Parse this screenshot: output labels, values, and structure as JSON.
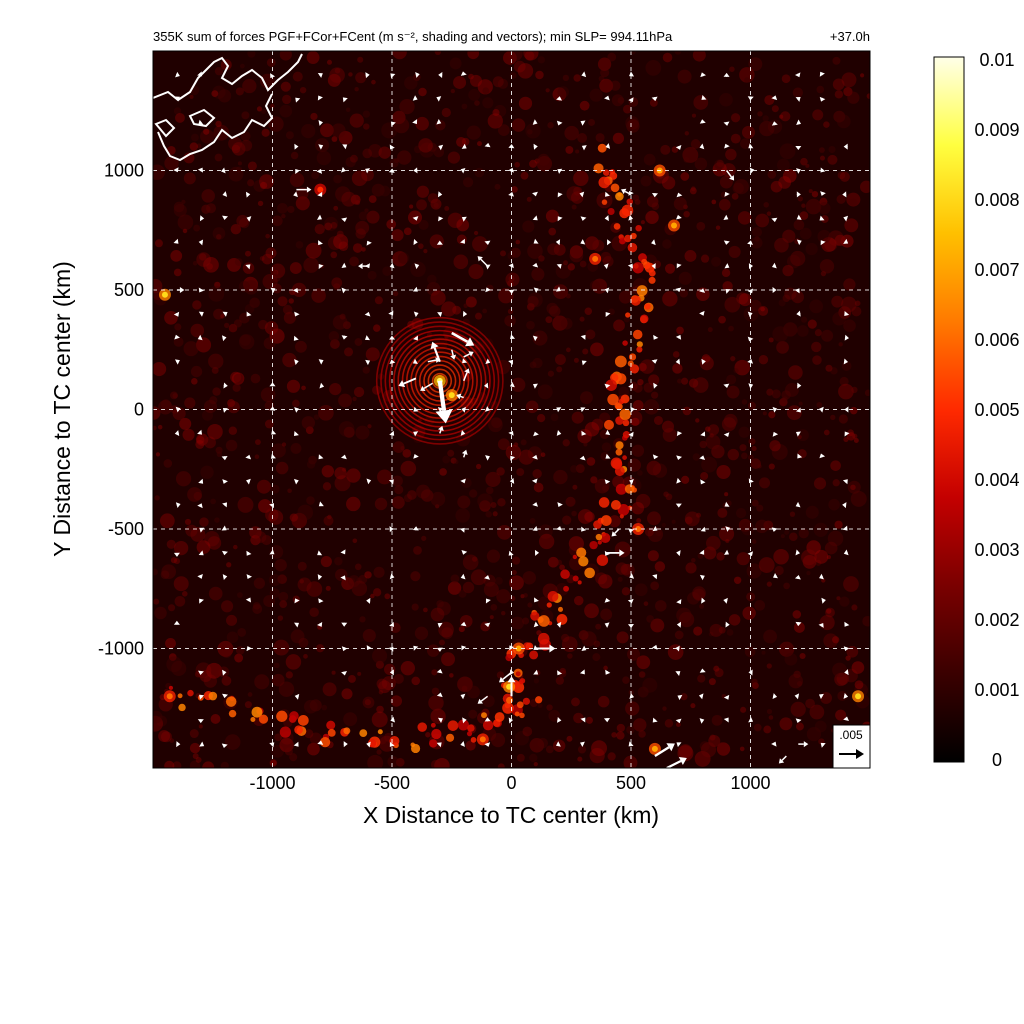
{
  "chart_data": {
    "type": "heatmap",
    "title": "355K sum of forces PGF+FCor+FCent (m s⁻², shading and vectors); min SLP= 994.11hPa",
    "time_label": "+37.0h",
    "xlabel": "X Distance to TC center (km)",
    "ylabel": "Y Distance to TC center (km)",
    "xlim": [
      -1500,
      1500
    ],
    "ylim": [
      -1500,
      1500
    ],
    "xticks": [
      -1000,
      -500,
      0,
      500,
      1000
    ],
    "yticks": [
      -1000,
      -500,
      0,
      500,
      1000
    ],
    "grid": true,
    "colorbar": {
      "range": [
        0,
        0.01
      ],
      "ticks": [
        "0",
        "0.001",
        "0.002",
        "0.003",
        "0.004",
        "0.005",
        "0.006",
        "0.007",
        "0.008",
        "0.009",
        "0.01"
      ],
      "colors": [
        "#000000",
        "#3a0000",
        "#7a0000",
        "#c40000",
        "#ff2a00",
        "#ff7a00",
        "#ffc000",
        "#ffff40",
        "#ffffe8"
      ]
    },
    "reference_vector": {
      "label": ".005",
      "magnitude": 0.005
    },
    "features": {
      "vortex_center": [
        -300,
        120
      ],
      "bands": [
        {
          "name": "eastern band",
          "points": [
            [
              350,
              1050
            ],
            [
              480,
              800
            ],
            [
              560,
              550
            ],
            [
              500,
              250
            ],
            [
              420,
              0
            ],
            [
              480,
              -300
            ],
            [
              380,
              -550
            ],
            [
              200,
              -800
            ],
            [
              30,
              -1050
            ],
            [
              0,
              -1300
            ]
          ]
        },
        {
          "name": "southern rainband",
          "points": [
            [
              -1400,
              -1200
            ],
            [
              -1000,
              -1300
            ],
            [
              -600,
              -1400
            ],
            [
              -200,
              -1350
            ],
            [
              100,
              -1200
            ]
          ]
        }
      ],
      "hotspots": [
        {
          "x": -300,
          "y": 120,
          "value": 0.009
        },
        {
          "x": -250,
          "y": 60,
          "value": 0.008
        },
        {
          "x": -1450,
          "y": 480,
          "value": 0.008
        },
        {
          "x": 620,
          "y": 1000,
          "value": 0.007
        },
        {
          "x": 680,
          "y": 770,
          "value": 0.007
        },
        {
          "x": 350,
          "y": 630,
          "value": 0.006
        },
        {
          "x": 530,
          "y": -500,
          "value": 0.006
        },
        {
          "x": 30,
          "y": -1000,
          "value": 0.007
        },
        {
          "x": -10,
          "y": -1160,
          "value": 0.008
        },
        {
          "x": -1430,
          "y": -1200,
          "value": 0.006
        },
        {
          "x": 1450,
          "y": -1200,
          "value": 0.008
        },
        {
          "x": 600,
          "y": -1420,
          "value": 0.007
        },
        {
          "x": -120,
          "y": -1380,
          "value": 0.006
        },
        {
          "x": -800,
          "y": 920,
          "value": 0.005
        }
      ]
    },
    "vectors": [
      {
        "x": -250,
        "y": 320,
        "u": 0.0045,
        "v": -0.0025
      },
      {
        "x": -300,
        "y": 200,
        "u": -0.0015,
        "v": 0.004
      },
      {
        "x": -250,
        "y": 250,
        "u": 0.0005,
        "v": -0.002
      },
      {
        "x": -300,
        "y": 120,
        "u": 0.0012,
        "v": -0.0085
      },
      {
        "x": -330,
        "y": 110,
        "u": -0.0025,
        "v": -0.0015
      },
      {
        "x": -400,
        "y": 130,
        "u": -0.0035,
        "v": -0.0015
      },
      {
        "x": -350,
        "y": 200,
        "u": 0.0025,
        "v": 0.0005
      },
      {
        "x": -200,
        "y": 220,
        "u": 0.002,
        "v": 0.001
      },
      {
        "x": -200,
        "y": 120,
        "u": 0.001,
        "v": 0.0025
      },
      {
        "x": -200,
        "y": 50,
        "u": -0.0015,
        "v": 0.0005
      },
      {
        "x": -300,
        "y": -100,
        "u": 0.0005,
        "v": 0.0015
      },
      {
        "x": -200,
        "y": -200,
        "u": 0.0005,
        "v": 0.0015
      },
      {
        "x": -100,
        "y": 600,
        "u": -0.002,
        "v": 0.002
      },
      {
        "x": 450,
        "y": -500,
        "u": -0.0015,
        "v": -0.0015
      },
      {
        "x": 400,
        "y": -600,
        "u": 0.0035,
        "v": 0
      },
      {
        "x": 100,
        "y": -1000,
        "u": 0.004,
        "v": 0
      },
      {
        "x": 0,
        "y": -1100,
        "u": -0.0025,
        "v": -0.002
      },
      {
        "x": 0,
        "y": -1200,
        "u": 0,
        "v": 0.004
      },
      {
        "x": -100,
        "y": -1200,
        "u": -0.002,
        "v": -0.0015
      },
      {
        "x": 600,
        "y": -1450,
        "u": 0.004,
        "v": 0.0025
      },
      {
        "x": 650,
        "y": -1500,
        "u": 0.004,
        "v": 0.002
      },
      {
        "x": 500,
        "y": 900,
        "u": -0.002,
        "v": 0.001
      },
      {
        "x": 900,
        "y": 1000,
        "u": 0.0015,
        "v": -0.002
      },
      {
        "x": -900,
        "y": 920,
        "u": 0.003,
        "v": 0
      },
      {
        "x": 1200,
        "y": -1400,
        "u": 0.002,
        "v": 0
      },
      {
        "x": 1150,
        "y": -1450,
        "u": -0.0015,
        "v": -0.0015
      },
      {
        "x": -600,
        "y": 600,
        "u": -0.002,
        "v": 0
      },
      {
        "x": -1400,
        "y": 500,
        "u": 0.0015,
        "v": 0
      }
    ]
  }
}
